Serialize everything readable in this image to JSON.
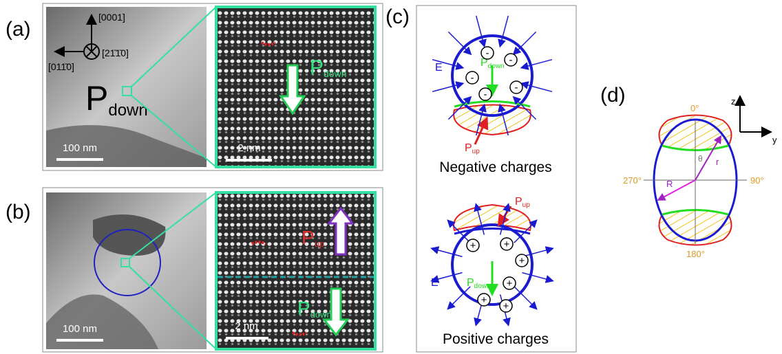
{
  "panels": {
    "a": {
      "label": "(a)",
      "axes": {
        "up": "[0001]",
        "into": "[21̄1̄0]",
        "left": "[011̄0]"
      },
      "polarization": {
        "symbol": "P",
        "sub": "down"
      },
      "scale_left": "100 nm",
      "scale_right": "2 nm",
      "arrow_label": {
        "symbol": "P",
        "sub": "down"
      }
    },
    "b": {
      "label": "(b)",
      "scale_left": "100 nm",
      "scale_right": "2 nm",
      "upper_label": {
        "symbol": "P",
        "sub": "up"
      },
      "lower_label": {
        "symbol": "P",
        "sub": "down"
      }
    },
    "c": {
      "label": "(c)",
      "top": {
        "field": "E",
        "p_down": {
          "symbol": "P",
          "sub": "down"
        },
        "p_up": {
          "symbol": "P",
          "sub": "up"
        },
        "charges": [
          "-",
          "-",
          "-",
          "-",
          "-"
        ],
        "caption": "Negative charges"
      },
      "bottom": {
        "field": "E",
        "p_down": {
          "symbol": "P",
          "sub": "down"
        },
        "p_up": {
          "symbol": "P",
          "sub": "up"
        },
        "charges": [
          "+",
          "+",
          "+",
          "+",
          "+",
          "+"
        ],
        "caption": "Positive charges"
      }
    },
    "d": {
      "label": "(d)",
      "z": "z",
      "y": "y",
      "angles": [
        "0°",
        "90°",
        "180°",
        "270°"
      ],
      "theta": "θ",
      "r": "r",
      "R": "R"
    }
  }
}
